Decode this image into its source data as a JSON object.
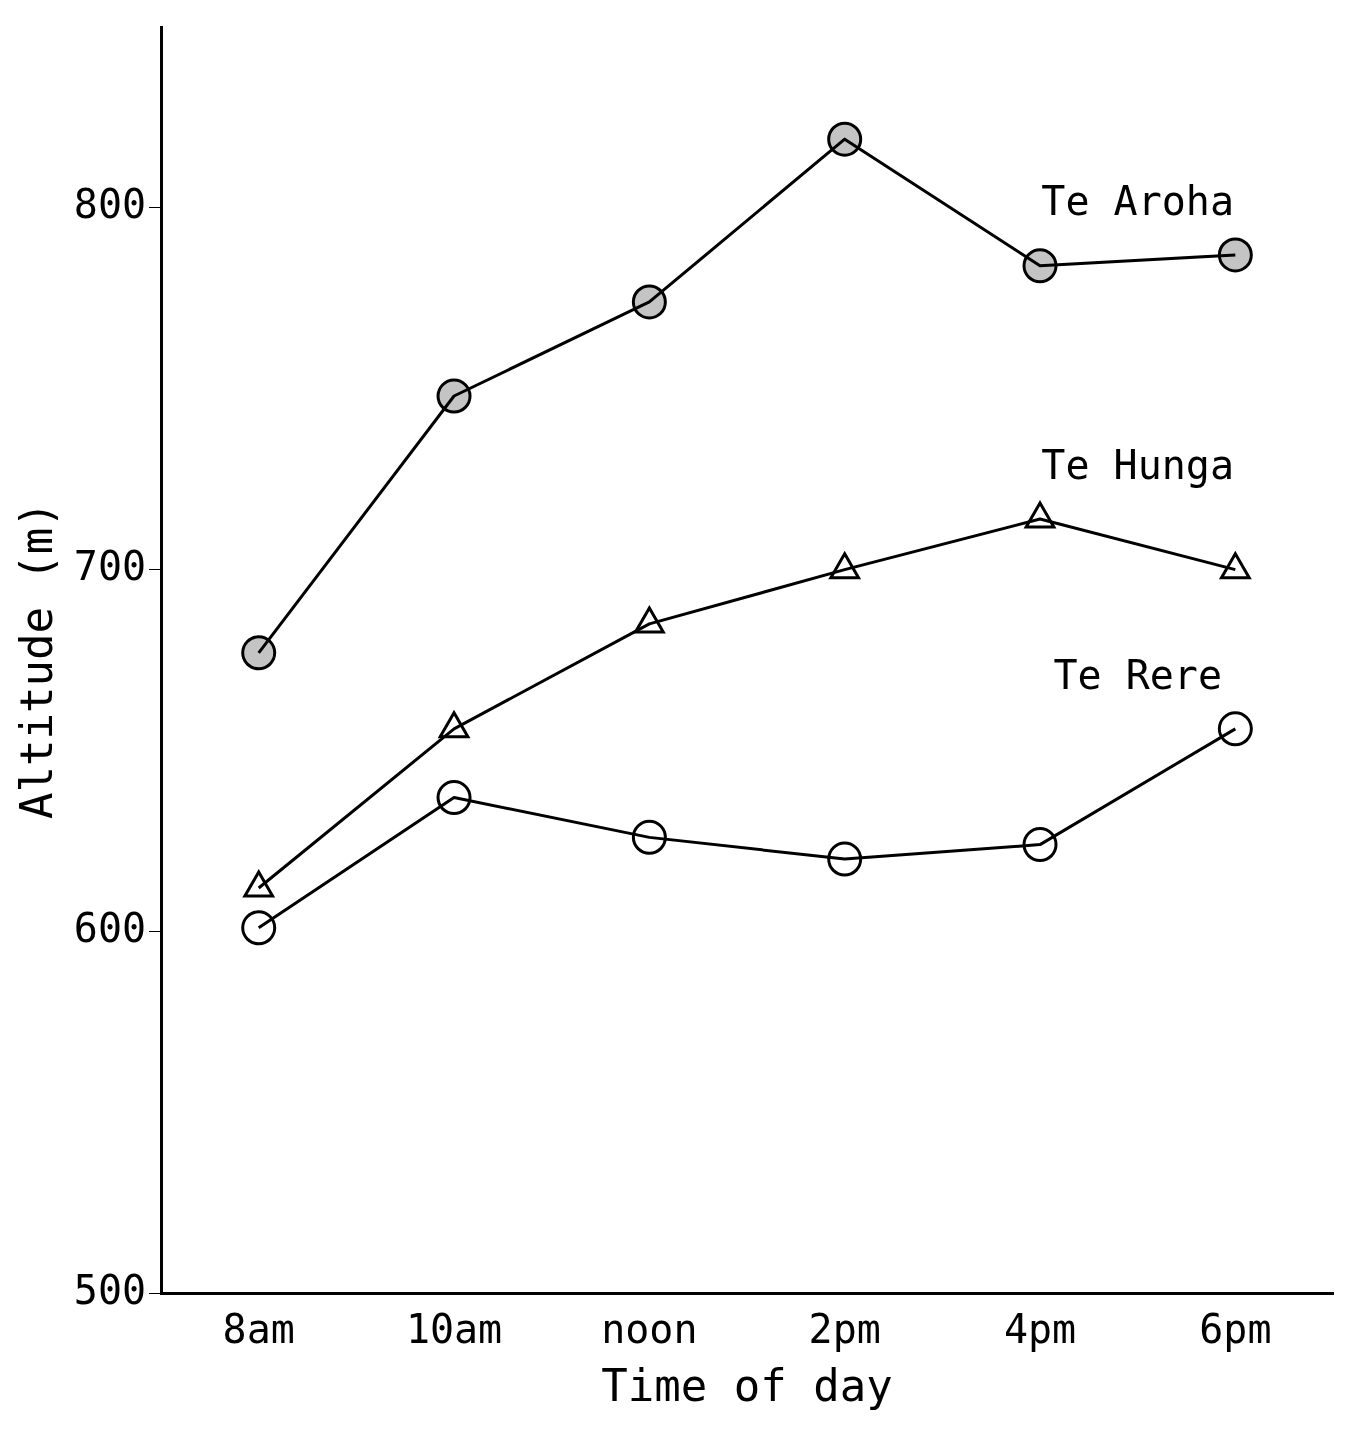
{
  "chart_data": {
    "type": "line",
    "xlabel": "Time of day",
    "ylabel": "Altitude (m)",
    "categories": [
      "8am",
      "10am",
      "noon",
      "2pm",
      "4pm",
      "6pm"
    ],
    "series": [
      {
        "name": "Te Aroha",
        "color": "#000000",
        "marker": "circle",
        "values": [
          677,
          748,
          774,
          819,
          784,
          787
        ]
      },
      {
        "name": "Te Hunga",
        "color": "#000000",
        "marker": "triangle",
        "values": [
          612,
          656,
          685,
          700,
          714,
          700
        ]
      },
      {
        "name": "Te Rere",
        "color": "#000000",
        "marker": "circle",
        "values": [
          601,
          637,
          626,
          620,
          624,
          656
        ]
      }
    ],
    "ylim": [
      500,
      850
    ],
    "yticks": [
      500,
      600,
      700,
      800
    ],
    "grid": false,
    "legend": false,
    "line_style": "solid"
  }
}
